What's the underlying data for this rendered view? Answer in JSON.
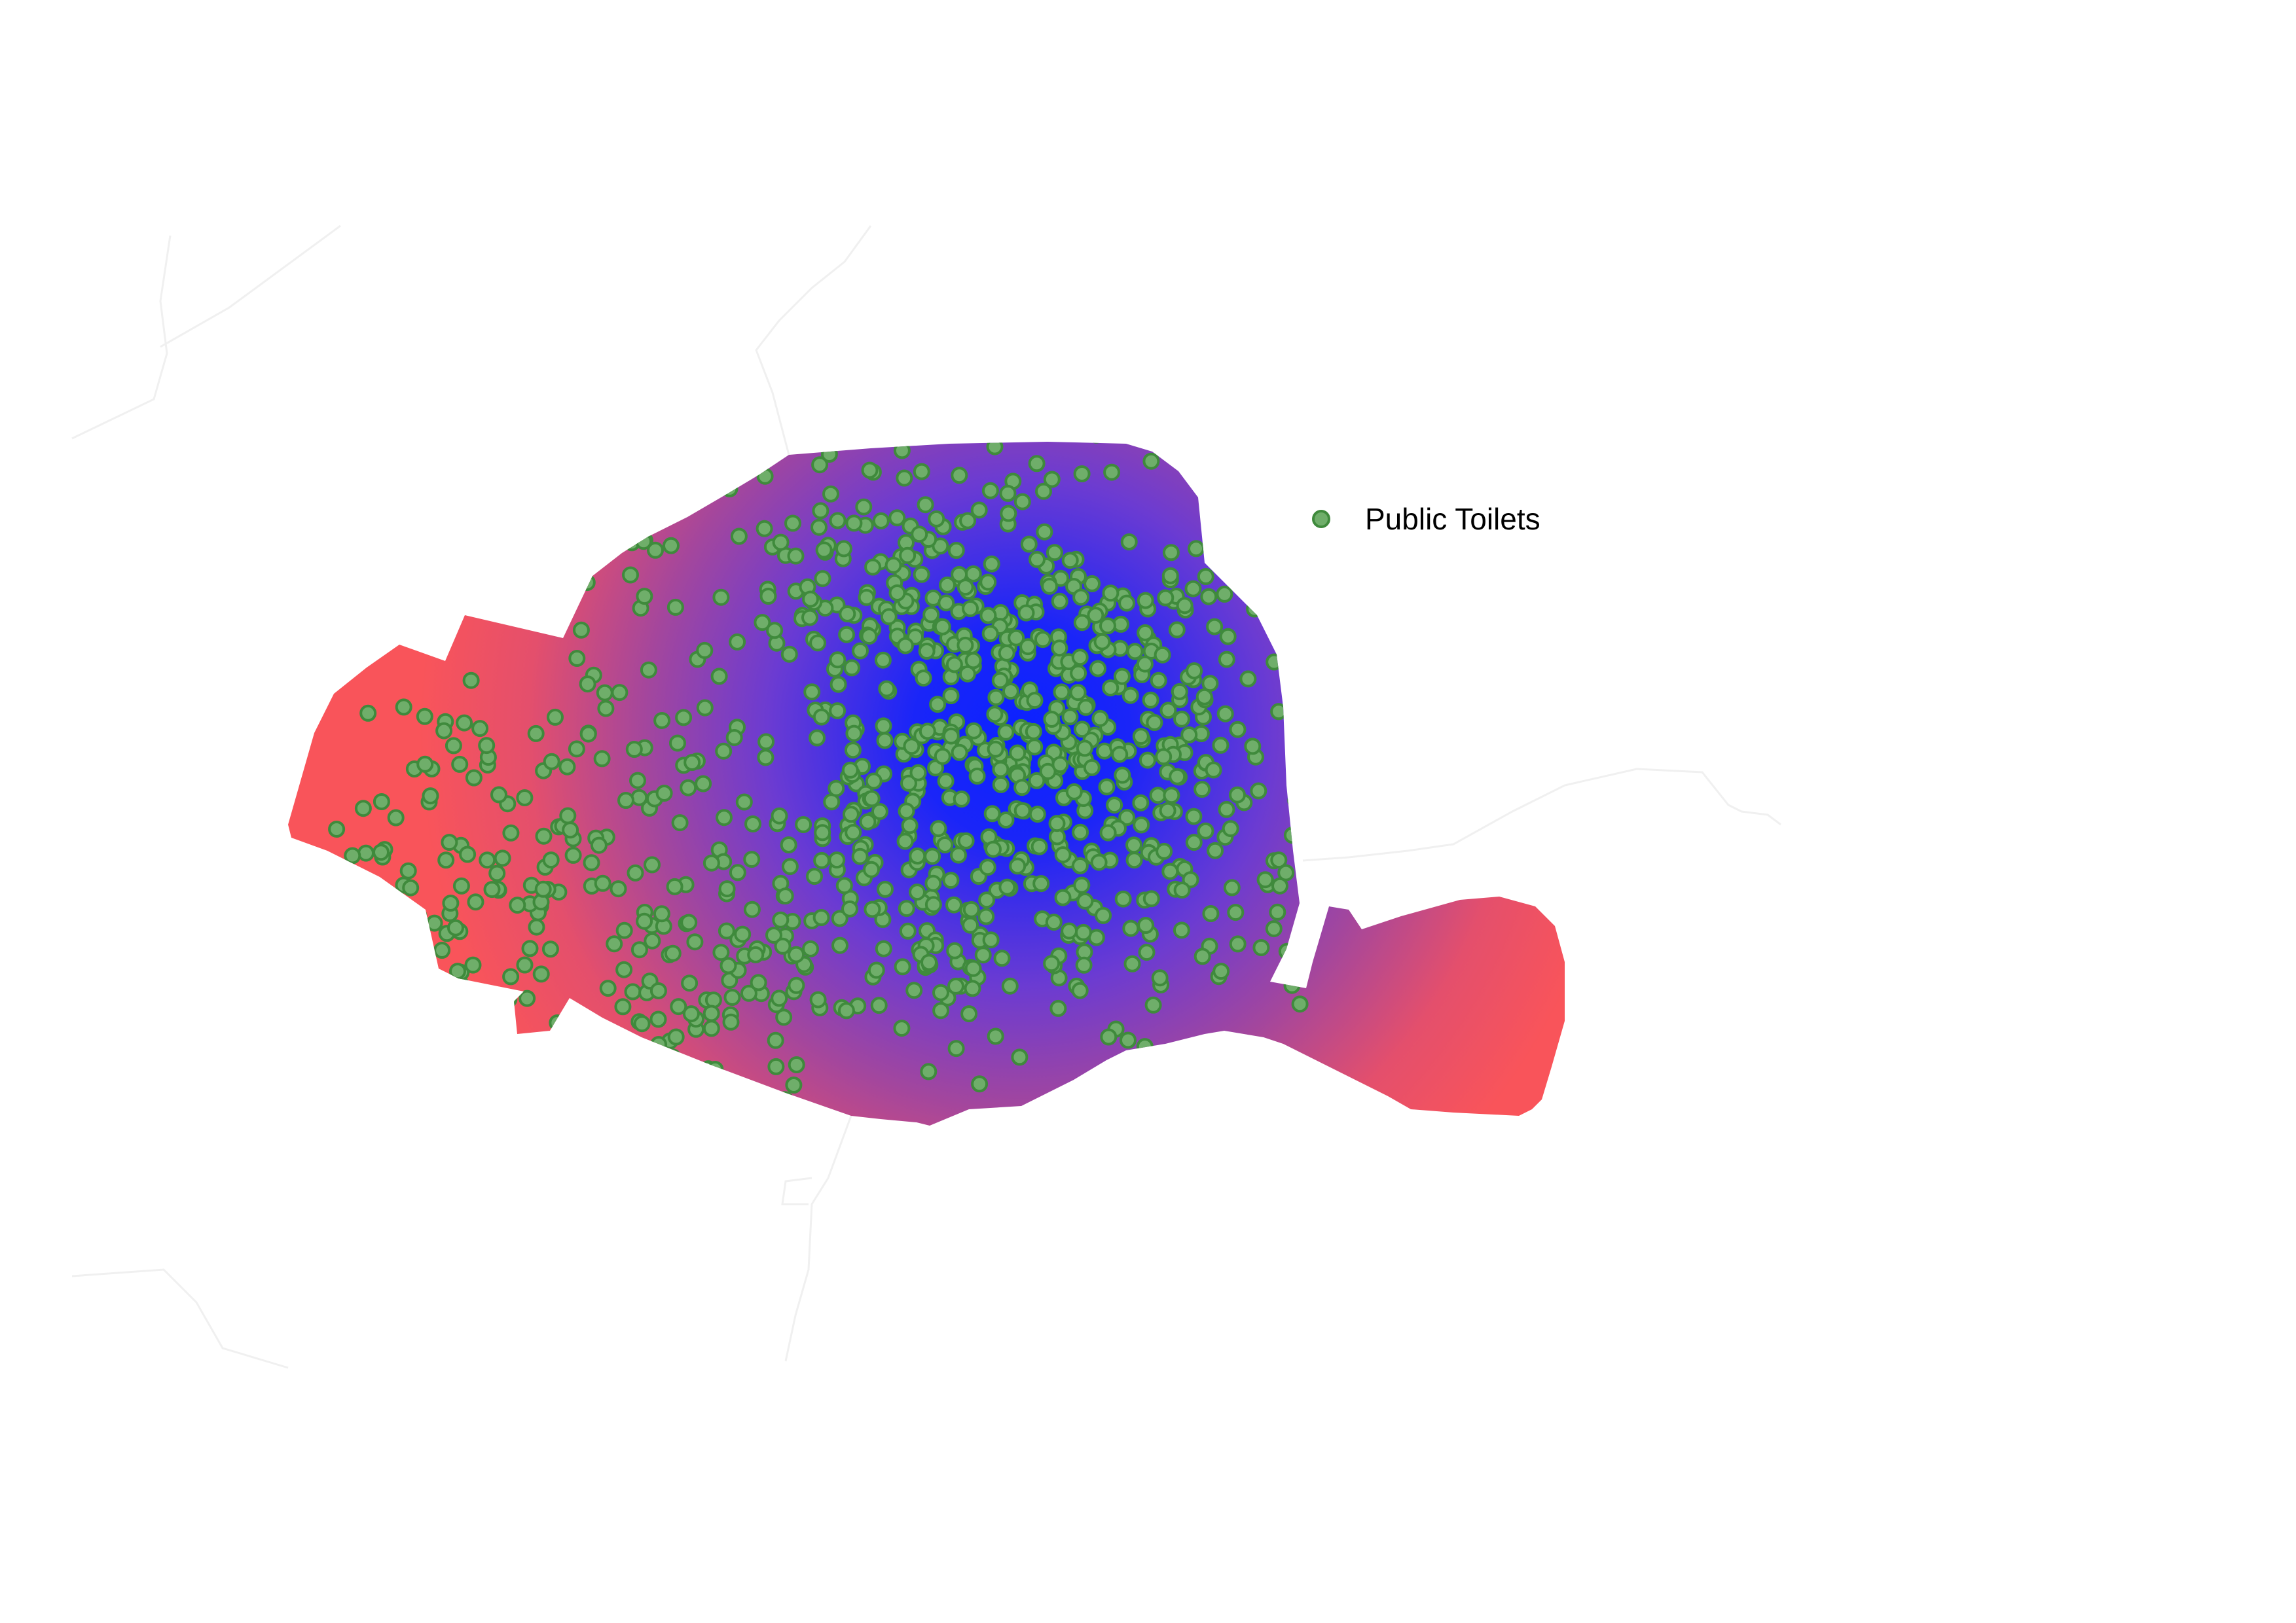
{
  "legend": {
    "label": "Public Toilets"
  },
  "colors": {
    "background": "#ffffff",
    "density_high": "#0b22ff",
    "density_mid": "#7a3fc8",
    "density_low": "#f9545a",
    "marker_fill": "#6fae6a",
    "marker_stroke": "#3f8a3c",
    "boundary_lines": "#f2f2f2"
  },
  "markers": {
    "count": 1000,
    "icon": "circle-marker-icon"
  }
}
